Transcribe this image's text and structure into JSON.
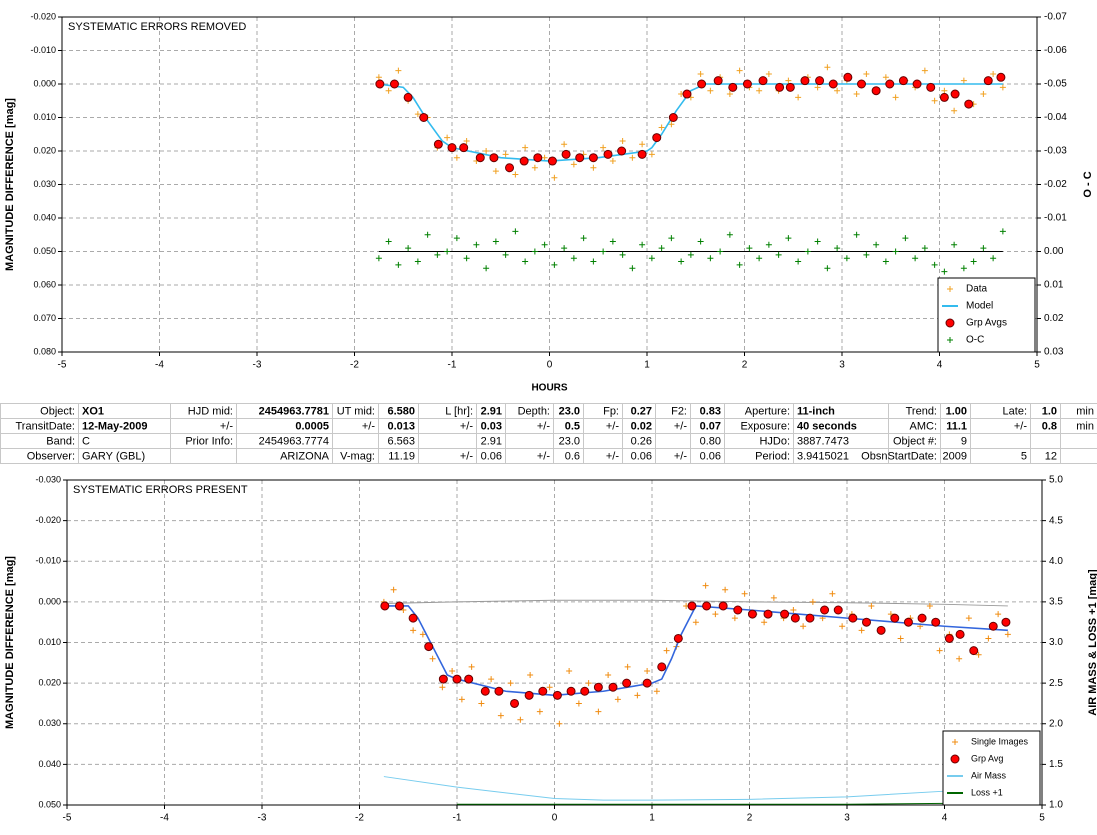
{
  "chart_data": [
    {
      "type": "scatter",
      "annotation": "SYSTEMATIC ERRORS REMOVED",
      "xlabel": "HOURS",
      "ylabel": "MAGNITUDE DIFFERENCE [mag]",
      "y2label": "O - C",
      "xlim": [
        -5,
        5
      ],
      "xticks": [
        -5,
        -4,
        -3,
        -2,
        -1,
        0,
        1,
        2,
        3,
        4,
        5
      ],
      "ylim": [
        -0.02,
        0.08
      ],
      "y_inverted": true,
      "yticks": [
        {
          "value": -0.02,
          "label": "-0.020"
        },
        {
          "value": -0.01,
          "label": "-0.010"
        },
        {
          "value": 0,
          "label": "0.000"
        },
        {
          "value": 0.01,
          "label": "0.010"
        },
        {
          "value": 0.02,
          "label": "0.020"
        },
        {
          "value": 0.03,
          "label": "0.030"
        },
        {
          "value": 0.04,
          "label": "0.040"
        },
        {
          "value": 0.05,
          "label": "0.050"
        },
        {
          "value": 0.06,
          "label": "0.060"
        },
        {
          "value": 0.07,
          "label": "0.070"
        },
        {
          "value": 0.08,
          "label": "0.080"
        }
      ],
      "y2lim": [
        -0.07,
        0.03
      ],
      "y2_inverted": true,
      "y2ticks": [
        -0.07,
        -0.06,
        -0.05,
        -0.04,
        -0.03,
        -0.02,
        -0.01,
        {
          "value": 0,
          "label": "0.00"
        },
        0.01,
        0.02,
        0.03
      ],
      "grid": true,
      "legend": "lower right",
      "zero_line_y2": true,
      "series": [
        {
          "name": "Data",
          "marker": "plus",
          "color": "#f0a020",
          "x": [
            -1.75,
            -1.65,
            -1.55,
            -1.45,
            -1.35,
            -1.25,
            -1.15,
            -1.05,
            -0.95,
            -0.85,
            -0.75,
            -0.65,
            -0.55,
            -0.45,
            -0.35,
            -0.25,
            -0.15,
            -0.05,
            0.05,
            0.15,
            0.25,
            0.35,
            0.45,
            0.55,
            0.65,
            0.75,
            0.85,
            0.95,
            1.05,
            1.15,
            1.25,
            1.35,
            1.45,
            1.55,
            1.65,
            1.75,
            1.85,
            1.95,
            2.05,
            2.15,
            2.25,
            2.35,
            2.45,
            2.55,
            2.65,
            2.75,
            2.85,
            2.95,
            3.05,
            3.15,
            3.25,
            3.35,
            3.45,
            3.55,
            3.65,
            3.75,
            3.85,
            3.95,
            4.05,
            4.15,
            4.25,
            4.35,
            4.45,
            4.55,
            4.65
          ],
          "values": [
            -0.002,
            0.002,
            -0.004,
            0.005,
            0.009,
            0.01,
            0.019,
            0.016,
            0.022,
            0.017,
            0.023,
            0.02,
            0.026,
            0.021,
            0.027,
            0.019,
            0.025,
            0.022,
            0.028,
            0.018,
            0.024,
            0.021,
            0.025,
            0.019,
            0.023,
            0.017,
            0.022,
            0.018,
            0.021,
            0.013,
            0.012,
            0.003,
            0.004,
            -0.003,
            0.002,
            -0.002,
            0.003,
            -0.004,
            0.001,
            0.002,
            -0.003,
            0.002,
            -0.001,
            0.004,
            -0.002,
            0.001,
            -0.005,
            0.002,
            -0.001,
            0.003,
            -0.003,
            0.002,
            -0.002,
            0.004,
            -0.001,
            0.001,
            -0.004,
            0.005,
            0.002,
            0.008,
            -0.001,
            0.006,
            0.003,
            -0.003,
            0.001
          ]
        },
        {
          "name": "Model",
          "marker": "line",
          "color": "#33bbee",
          "x": [
            -1.75,
            -1.5,
            -1.4,
            -1.25,
            -1.1,
            -1.0,
            -0.5,
            0,
            0.5,
            1.0,
            1.05,
            1.15,
            1.3,
            1.45,
            1.6,
            4.65
          ],
          "values": [
            0,
            0.001,
            0.004,
            0.011,
            0.017,
            0.019,
            0.022,
            0.023,
            0.022,
            0.02,
            0.019,
            0.015,
            0.008,
            0.002,
            0,
            0
          ]
        },
        {
          "name": "Grp Avgs",
          "marker": "circle",
          "color": "#ff0000",
          "x": [
            -1.74,
            -1.59,
            -1.45,
            -1.29,
            -1.14,
            -1.0,
            -0.88,
            -0.71,
            -0.57,
            -0.41,
            -0.26,
            -0.12,
            0.03,
            0.17,
            0.31,
            0.45,
            0.6,
            0.74,
            0.95,
            1.1,
            1.27,
            1.41,
            1.56,
            1.73,
            1.88,
            2.03,
            2.19,
            2.36,
            2.47,
            2.62,
            2.77,
            2.91,
            3.06,
            3.2,
            3.35,
            3.49,
            3.63,
            3.77,
            3.91,
            4.05,
            4.16,
            4.3,
            4.5,
            4.63
          ],
          "values": [
            0,
            0,
            0.004,
            0.01,
            0.018,
            0.019,
            0.019,
            0.022,
            0.022,
            0.025,
            0.023,
            0.022,
            0.023,
            0.021,
            0.022,
            0.022,
            0.021,
            0.02,
            0.021,
            0.016,
            0.01,
            0.003,
            0,
            -0.001,
            0.001,
            0,
            -0.001,
            0.001,
            0.001,
            -0.001,
            -0.001,
            0,
            -0.002,
            0,
            0.002,
            0,
            -0.001,
            0,
            0.001,
            0.004,
            0.003,
            0.006,
            -0.001,
            -0.002
          ]
        },
        {
          "name": "O-C",
          "marker": "plus",
          "color": "#008000",
          "axis": "y2",
          "x": [
            -1.75,
            -1.65,
            -1.55,
            -1.45,
            -1.35,
            -1.25,
            -1.15,
            -1.05,
            -0.95,
            -0.85,
            -0.75,
            -0.65,
            -0.55,
            -0.45,
            -0.35,
            -0.25,
            -0.15,
            -0.05,
            0.05,
            0.15,
            0.25,
            0.35,
            0.45,
            0.55,
            0.65,
            0.75,
            0.85,
            0.95,
            1.05,
            1.15,
            1.25,
            1.35,
            1.45,
            1.55,
            1.65,
            1.75,
            1.85,
            1.95,
            2.05,
            2.15,
            2.25,
            2.35,
            2.45,
            2.55,
            2.65,
            2.75,
            2.85,
            2.95,
            3.05,
            3.15,
            3.25,
            3.35,
            3.45,
            3.55,
            3.65,
            3.75,
            3.85,
            3.95,
            4.05,
            4.15,
            4.25,
            4.35,
            4.45,
            4.55,
            4.65
          ],
          "values": [
            0.002,
            -0.003,
            0.004,
            -0.001,
            0.003,
            -0.005,
            0.001,
            0,
            -0.004,
            0.002,
            -0.002,
            0.005,
            -0.003,
            0.001,
            -0.006,
            0.003,
            0,
            -0.002,
            0.004,
            -0.001,
            0.002,
            -0.004,
            0.003,
            0,
            -0.003,
            0.001,
            0.005,
            -0.002,
            0.002,
            -0.001,
            -0.004,
            0.003,
            0.001,
            -0.003,
            0.002,
            0,
            -0.005,
            0.004,
            -0.001,
            0.002,
            -0.002,
            0.001,
            -0.004,
            0.003,
            0,
            -0.003,
            0.005,
            -0.001,
            0.002,
            -0.005,
            0.001,
            -0.002,
            0.003,
            0,
            -0.004,
            0.002,
            -0.001,
            0.004,
            0.006,
            -0.002,
            0.005,
            0.003,
            -0.001,
            0.002,
            -0.006
          ]
        }
      ]
    },
    {
      "type": "scatter",
      "annotation": "SYSTEMATIC ERRORS PRESENT",
      "ylabel": "MAGNITUDE DIFFERENCE [mag]",
      "y2label": "AIR MASS & LOSS +1 [mag]",
      "xlim": [
        -5,
        5
      ],
      "xticks": [
        -5,
        -4,
        -3,
        -2,
        -1,
        0,
        1,
        2,
        3,
        4,
        5
      ],
      "ylim": [
        -0.03,
        0.05
      ],
      "y_inverted": true,
      "yticks": [
        {
          "value": -0.03,
          "label": "-0.030"
        },
        {
          "value": -0.02,
          "label": "-0.020"
        },
        {
          "value": -0.01,
          "label": "-0.010"
        },
        {
          "value": 0,
          "label": "0.000"
        },
        {
          "value": 0.01,
          "label": "0.010"
        },
        {
          "value": 0.02,
          "label": "0.020"
        },
        {
          "value": 0.03,
          "label": "0.030"
        },
        {
          "value": 0.04,
          "label": "0.040"
        },
        {
          "value": 0.05,
          "label": "0.050"
        }
      ],
      "y2lim": [
        1,
        5
      ],
      "y2_inverted": false,
      "y2ticks": [
        {
          "value": 1,
          "label": "1.0"
        },
        1.5,
        {
          "value": 2,
          "label": "2.0"
        },
        2.5,
        {
          "value": 3,
          "label": "3.0"
        },
        3.5,
        {
          "value": 4,
          "label": "4.0"
        },
        4.5,
        {
          "value": 5,
          "label": "5.0"
        }
      ],
      "grid": true,
      "legend": "lower right",
      "zero_line_y2": false,
      "series": [
        {
          "marker": "line",
          "color": "#999999",
          "axis": "y2",
          "x": [
            -1.75,
            -1,
            0,
            1,
            1.5,
            2,
            3,
            4,
            4.65
          ],
          "values": [
            3.48,
            3.5,
            3.52,
            3.52,
            3.51,
            3.5,
            3.49,
            3.47,
            3.45
          ]
        },
        {
          "name": "Single Images",
          "marker": "plus",
          "color": "#f08c10",
          "x": [
            -1.75,
            -1.65,
            -1.55,
            -1.45,
            -1.35,
            -1.25,
            -1.15,
            -1.05,
            -0.95,
            -0.85,
            -0.75,
            -0.65,
            -0.55,
            -0.45,
            -0.35,
            -0.25,
            -0.15,
            -0.05,
            0.05,
            0.15,
            0.25,
            0.35,
            0.45,
            0.55,
            0.65,
            0.75,
            0.85,
            0.95,
            1.05,
            1.15,
            1.25,
            1.35,
            1.45,
            1.55,
            1.65,
            1.75,
            1.85,
            1.95,
            2.05,
            2.15,
            2.25,
            2.35,
            2.45,
            2.55,
            2.65,
            2.75,
            2.85,
            2.95,
            3.05,
            3.15,
            3.25,
            3.35,
            3.45,
            3.55,
            3.65,
            3.75,
            3.85,
            3.95,
            4.05,
            4.15,
            4.25,
            4.35,
            4.45,
            4.55,
            4.65
          ],
          "values": [
            0,
            -0.003,
            0.002,
            0.007,
            0.008,
            0.014,
            0.021,
            0.017,
            0.024,
            0.016,
            0.025,
            0.019,
            0.028,
            0.02,
            0.029,
            0.018,
            0.027,
            0.021,
            0.03,
            0.017,
            0.025,
            0.02,
            0.027,
            0.018,
            0.024,
            0.016,
            0.023,
            0.017,
            0.022,
            0.012,
            0.011,
            0.001,
            0.005,
            -0.004,
            0.003,
            -0.003,
            0.004,
            -0.002,
            0.003,
            0.005,
            -0.001,
            0.004,
            0.002,
            0.006,
            0,
            0.004,
            -0.002,
            0.006,
            0.003,
            0.007,
            0.001,
            0.007,
            0.003,
            0.009,
            0.004,
            0.006,
            0.001,
            0.012,
            0.008,
            0.014,
            0.004,
            0.013,
            0.009,
            0.003,
            0.008
          ]
        },
        {
          "marker": "line",
          "color": "#3366dd",
          "x": [
            -1.75,
            -1.5,
            -1.4,
            -1.25,
            -1.1,
            -1.0,
            -0.5,
            0,
            0.5,
            1.0,
            1.1,
            1.2,
            1.3,
            1.45,
            2.0,
            3.0,
            4.0,
            4.65
          ],
          "values": [
            0.001,
            0.001,
            0.004,
            0.011,
            0.018,
            0.019,
            0.022,
            0.023,
            0.022,
            0.02,
            0.019,
            0.014,
            0.008,
            0.001,
            0.002,
            0.004,
            0.006,
            0.007
          ]
        },
        {
          "name": "Grp Avg",
          "marker": "circle",
          "color": "#ff0000",
          "x": [
            -1.74,
            -1.59,
            -1.45,
            -1.29,
            -1.14,
            -1.0,
            -0.88,
            -0.71,
            -0.57,
            -0.41,
            -0.26,
            -0.12,
            0.03,
            0.17,
            0.31,
            0.45,
            0.6,
            0.74,
            0.95,
            1.1,
            1.27,
            1.41,
            1.56,
            1.73,
            1.88,
            2.03,
            2.19,
            2.36,
            2.47,
            2.62,
            2.77,
            2.91,
            3.06,
            3.2,
            3.35,
            3.49,
            3.63,
            3.77,
            3.91,
            4.05,
            4.16,
            4.3,
            4.5,
            4.63
          ],
          "values": [
            0.001,
            0.001,
            0.004,
            0.011,
            0.019,
            0.019,
            0.019,
            0.022,
            0.022,
            0.025,
            0.023,
            0.022,
            0.023,
            0.022,
            0.022,
            0.021,
            0.021,
            0.02,
            0.02,
            0.016,
            0.009,
            0.001,
            0.001,
            0.001,
            0.002,
            0.003,
            0.003,
            0.003,
            0.004,
            0.004,
            0.002,
            0.002,
            0.004,
            0.005,
            0.007,
            0.004,
            0.005,
            0.004,
            0.005,
            0.009,
            0.008,
            0.012,
            0.006,
            0.005
          ]
        },
        {
          "name": "Air Mass",
          "marker": "line",
          "color": "#77ccee",
          "axis": "y2",
          "x": [
            -1.75,
            -1,
            0,
            0.5,
            1,
            2,
            3,
            4,
            4.5
          ],
          "values": [
            1.35,
            1.22,
            1.08,
            1.06,
            1.06,
            1.07,
            1.1,
            1.17,
            1.22
          ]
        },
        {
          "name": "Loss +1",
          "marker": "line",
          "color": "#006600",
          "axis": "y2",
          "x": [
            -1,
            0,
            1,
            2,
            3,
            4,
            4.65
          ],
          "values": [
            1.01,
            1.01,
            1.01,
            1.01,
            1.01,
            1.02,
            1.02
          ]
        }
      ]
    }
  ],
  "table": {
    "rows": [
      [
        "Object:",
        "XO1",
        "HJD mid:",
        "2454963.7781",
        "UT mid:",
        "6.580",
        "L [hr]:",
        "2.91",
        "Depth:",
        "23.0",
        "Fp:",
        "0.27",
        "F2:",
        "0.83",
        "Aperture:",
        "11-inch",
        "Trend:",
        "1.00",
        "Late:",
        "1.0",
        "min"
      ],
      [
        "TransitDate:",
        "12-May-2009",
        "+/-",
        "0.0005",
        "+/-",
        "0.013",
        "+/-",
        "0.03",
        "+/-",
        "0.5",
        "+/-",
        "0.02",
        "+/-",
        "0.07",
        "Exposure:",
        "40 seconds",
        "AMC:",
        "11.1",
        "+/-",
        "0.8",
        "min"
      ],
      [
        "Band:",
        "C",
        "Prior Info:",
        "2454963.7774",
        null,
        "6.563",
        null,
        "2.91",
        null,
        "23.0",
        null,
        "0.26",
        null,
        "0.80",
        "HJDo:",
        "3887.7473",
        "Object #:",
        "9",
        null,
        null,
        null
      ],
      [
        "Observer:",
        "GARY (GBL)",
        null,
        "ARIZONA",
        "V-mag:",
        "11.19",
        "+/-",
        "0.06",
        "+/-",
        "0.6",
        "+/-",
        "0.06",
        "+/-",
        "0.06",
        "Period:",
        "3.9415021",
        "ObsnStartDate:",
        "2009",
        "5",
        "12",
        null
      ]
    ]
  }
}
